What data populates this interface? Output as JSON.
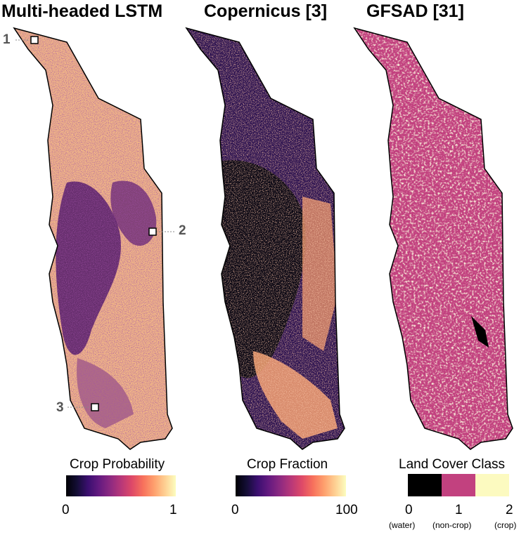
{
  "panels": [
    {
      "title": "Multi-headed LSTM",
      "legend_title": "Crop Probability",
      "tick_min": "0",
      "tick_max": "1"
    },
    {
      "title": "Copernicus [3]",
      "legend_title": "Crop Fraction",
      "tick_min": "0",
      "tick_max": "100"
    },
    {
      "title": "GFSAD [31]",
      "legend_title": "Land Cover Class"
    }
  ],
  "markers": [
    "1",
    "2",
    "3"
  ],
  "land_cover_classes": [
    {
      "value": "0",
      "label": "(water)",
      "color": "#000000"
    },
    {
      "value": "1",
      "label": "(non-crop)",
      "color": "#c2417f"
    },
    {
      "value": "2",
      "label": "(crop)",
      "color": "#fcfac0"
    }
  ],
  "colormap": "magma",
  "colors": {
    "lstm_base": "#f3b886",
    "copernicus_base": "#2b1150",
    "gfsad_base": "#c2417f"
  }
}
